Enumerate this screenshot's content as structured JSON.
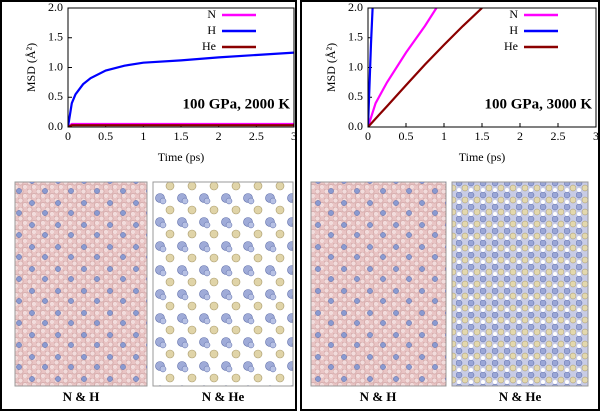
{
  "chart_data": [
    {
      "type": "line",
      "annotation": "100 GPa, 2000 K",
      "xlabel": "Time (ps)",
      "ylabel": "MSD (Å²)",
      "xlim": [
        0,
        3
      ],
      "ylim": [
        0,
        2
      ],
      "xticks": [
        0,
        0.5,
        1,
        1.5,
        2,
        2.5,
        3
      ],
      "yticks": [
        {
          "value": 0,
          "label": "0.0"
        },
        {
          "value": 0.5,
          "label": "0.5"
        },
        {
          "value": 1,
          "label": "1.0"
        },
        {
          "value": 1.5,
          "label": "1.5"
        },
        {
          "value": 2,
          "label": "2.0"
        }
      ],
      "legend": "upper right",
      "series": [
        {
          "name": "N",
          "color": "#ff00ff",
          "x": [
            0,
            0.05,
            0.5,
            1,
            1.5,
            2,
            2.5,
            3
          ],
          "values": [
            0,
            0.05,
            0.05,
            0.05,
            0.05,
            0.05,
            0.05,
            0.05
          ]
        },
        {
          "name": "H",
          "color": "#0000ff",
          "x": [
            0,
            0.05,
            0.1,
            0.2,
            0.3,
            0.5,
            0.75,
            1,
            1.5,
            2,
            2.5,
            3
          ],
          "values": [
            0,
            0.4,
            0.55,
            0.72,
            0.82,
            0.95,
            1.03,
            1.08,
            1.12,
            1.17,
            1.21,
            1.25
          ]
        },
        {
          "name": "He",
          "color": "#8b0000",
          "x": [
            0,
            0.05,
            0.5,
            1,
            1.5,
            2,
            2.5,
            3
          ],
          "values": [
            0,
            0.03,
            0.03,
            0.03,
            0.03,
            0.03,
            0.03,
            0.03
          ]
        }
      ]
    },
    {
      "type": "line",
      "annotation": "100 GPa, 3000 K",
      "xlabel": "Time (ps)",
      "ylabel": "MSD (Å²)",
      "xlim": [
        0,
        3
      ],
      "ylim": [
        0,
        2
      ],
      "xticks": [
        0,
        0.5,
        1,
        1.5,
        2,
        2.5,
        3
      ],
      "yticks": [
        {
          "value": 0,
          "label": "0.0"
        },
        {
          "value": 0.5,
          "label": "0.5"
        },
        {
          "value": 1,
          "label": "1.0"
        },
        {
          "value": 1.5,
          "label": "1.5"
        },
        {
          "value": 2,
          "label": "2.0"
        }
      ],
      "legend": "upper right",
      "series": [
        {
          "name": "N",
          "color": "#ff00ff",
          "x": [
            0,
            0.1,
            0.25,
            0.5,
            0.75,
            0.9
          ],
          "values": [
            0,
            0.4,
            0.75,
            1.25,
            1.7,
            2.0
          ]
        },
        {
          "name": "H",
          "color": "#0000ff",
          "x": [
            0,
            0.02,
            0.04,
            0.06
          ],
          "values": [
            0,
            0.7,
            1.4,
            2.0
          ]
        },
        {
          "name": "He",
          "color": "#8b0000",
          "x": [
            0,
            0.25,
            0.5,
            0.75,
            1,
            1.25,
            1.5
          ],
          "values": [
            0,
            0.35,
            0.7,
            1.05,
            1.38,
            1.7,
            2.0
          ]
        }
      ]
    }
  ],
  "snapshot_labels": [
    [
      "N & H",
      "N & He"
    ],
    [
      "N & H",
      "N & He"
    ]
  ]
}
